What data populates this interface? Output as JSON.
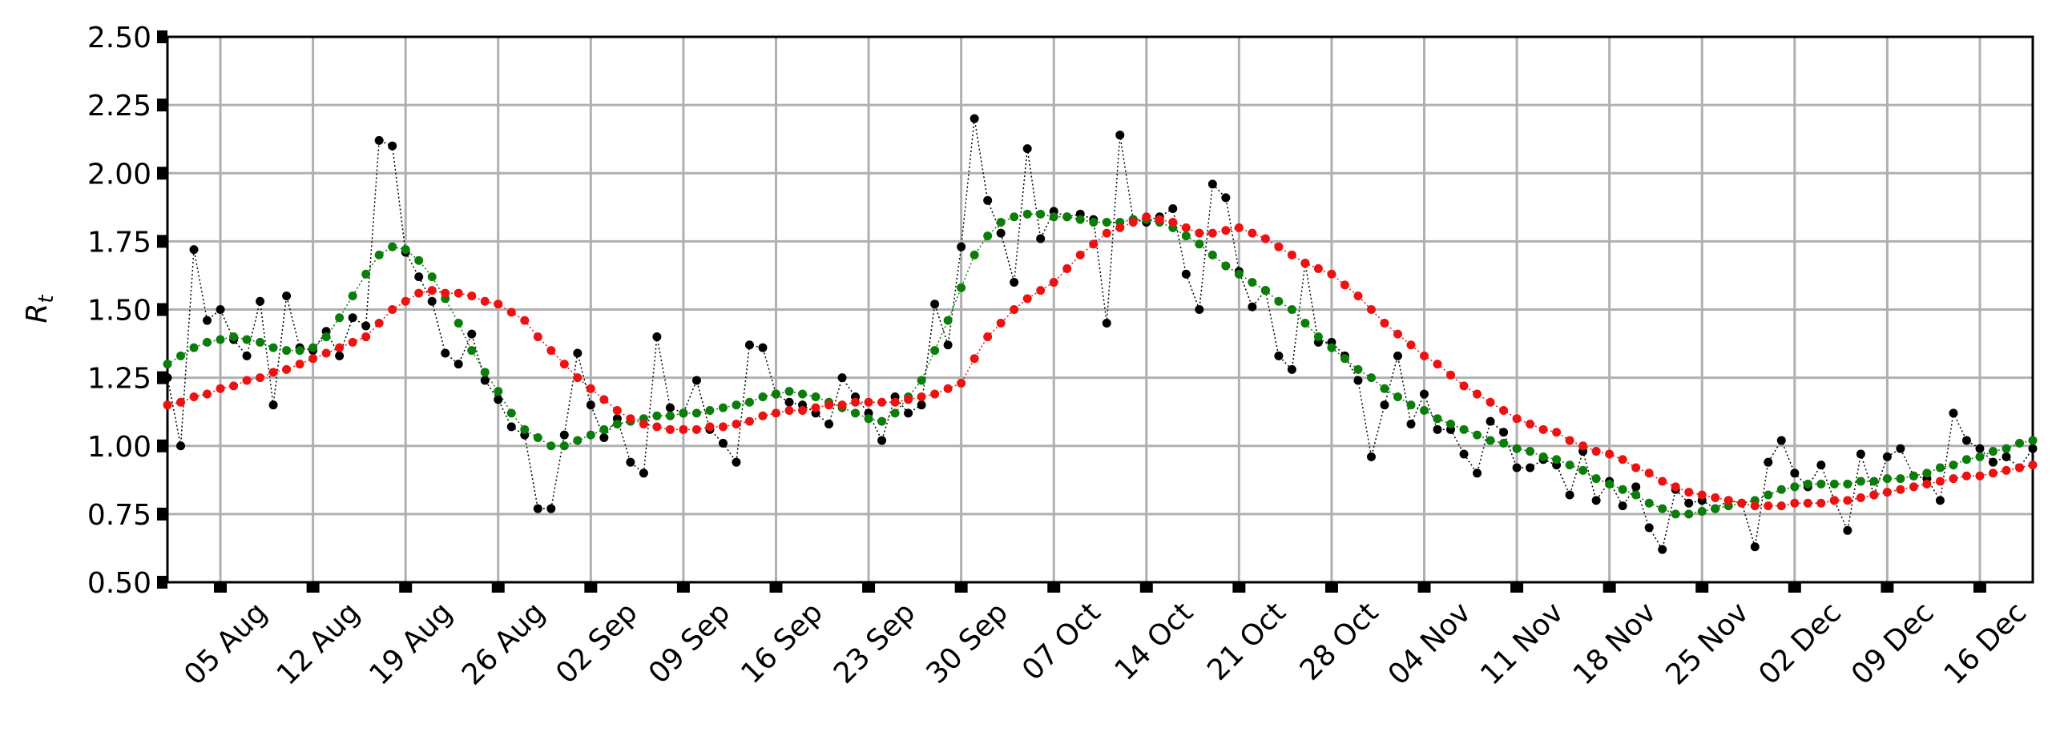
{
  "chart_data": {
    "type": "line",
    "ylabel": "R",
    "ylabel_subscript": "t",
    "categories": [
      null,
      null,
      null,
      null,
      "05 Aug",
      null,
      null,
      null,
      null,
      null,
      null,
      "12 Aug",
      null,
      null,
      null,
      null,
      null,
      null,
      "19 Aug",
      null,
      null,
      null,
      null,
      null,
      null,
      "26 Aug",
      null,
      null,
      null,
      null,
      null,
      null,
      "02 Sep",
      null,
      null,
      null,
      null,
      null,
      null,
      "09 Sep",
      null,
      null,
      null,
      null,
      null,
      null,
      "16 Sep",
      null,
      null,
      null,
      null,
      null,
      null,
      "23 Sep",
      null,
      null,
      null,
      null,
      null,
      null,
      "30 Sep",
      null,
      null,
      null,
      null,
      null,
      null,
      "07 Oct",
      null,
      null,
      null,
      null,
      null,
      null,
      "14 Oct",
      null,
      null,
      null,
      null,
      null,
      null,
      "21 Oct",
      null,
      null,
      null,
      null,
      null,
      null,
      "28 Oct",
      null,
      null,
      null,
      null,
      null,
      null,
      "04 Nov",
      null,
      null,
      null,
      null,
      null,
      null,
      "11 Nov",
      null,
      null,
      null,
      null,
      null,
      null,
      "18 Nov",
      null,
      null,
      null,
      null,
      null,
      null,
      "25 Nov",
      null,
      null,
      null,
      null,
      null,
      null,
      "02 Dec",
      null,
      null,
      null,
      null,
      null,
      null,
      "09 Dec",
      null,
      null,
      null,
      null,
      null,
      null,
      "16 Dec",
      null,
      null,
      null,
      null
    ],
    "ylim": [
      0.5,
      2.5
    ],
    "yticks": [
      {
        "value": 0.5,
        "label": "0.50"
      },
      {
        "value": 0.75,
        "label": "0.75"
      },
      {
        "value": 1.0,
        "label": "1.00"
      },
      {
        "value": 1.25,
        "label": "1.25"
      },
      {
        "value": 1.5,
        "label": "1.50"
      },
      {
        "value": 1.75,
        "label": "1.75"
      },
      {
        "value": 2.0,
        "label": "2.00"
      },
      {
        "value": 2.25,
        "label": "2.25"
      },
      {
        "value": 2.5,
        "label": "2.50"
      }
    ],
    "grid": true,
    "series": [
      {
        "color": "#000000",
        "linestyle": "dotted",
        "values": [
          1.25,
          1.0,
          1.72,
          1.46,
          1.5,
          1.39,
          1.33,
          1.53,
          1.15,
          1.55,
          1.36,
          1.35,
          1.42,
          1.33,
          1.47,
          1.44,
          2.12,
          2.1,
          1.71,
          1.62,
          1.53,
          1.34,
          1.3,
          1.41,
          1.24,
          1.17,
          1.07,
          1.04,
          0.77,
          0.77,
          1.04,
          1.34,
          1.15,
          1.03,
          1.1,
          0.94,
          0.9,
          1.4,
          1.14,
          1.12,
          1.24,
          1.06,
          1.01,
          0.94,
          1.37,
          1.36,
          1.19,
          1.16,
          1.15,
          1.12,
          1.08,
          1.25,
          1.18,
          1.12,
          1.02,
          1.18,
          1.12,
          1.15,
          1.52,
          1.37,
          1.73,
          2.2,
          1.9,
          1.78,
          1.6,
          2.09,
          1.76,
          1.86,
          1.84,
          1.85,
          1.83,
          1.45,
          2.14,
          1.83,
          1.82,
          1.84,
          1.87,
          1.63,
          1.5,
          1.96,
          1.91,
          1.64,
          1.51,
          1.57,
          1.33,
          1.28,
          1.67,
          1.38,
          1.38,
          1.33,
          1.24,
          0.96,
          1.15,
          1.33,
          1.08,
          1.19,
          1.06,
          1.06,
          0.97,
          0.9,
          1.09,
          1.05,
          0.92,
          0.92,
          0.95,
          0.93,
          0.82,
          0.98,
          0.8,
          0.87,
          0.78,
          0.85,
          0.7,
          0.62,
          0.84,
          0.79,
          0.8,
          0.77,
          0.8,
          0.79,
          0.63,
          0.94,
          1.02,
          0.9,
          0.85,
          0.93,
          0.8,
          0.69,
          0.97,
          0.82,
          0.96,
          0.99,
          0.89,
          0.88,
          0.8,
          1.12,
          1.02,
          0.99,
          0.94,
          0.96,
          0.92,
          0.99
        ]
      },
      {
        "color": "#0a7d0a",
        "linestyle": "dotted",
        "values": [
          1.3,
          1.33,
          1.36,
          1.38,
          1.39,
          1.4,
          1.39,
          1.38,
          1.36,
          1.35,
          1.35,
          1.36,
          1.4,
          1.47,
          1.55,
          1.63,
          1.7,
          1.73,
          1.72,
          1.68,
          1.62,
          1.54,
          1.45,
          1.35,
          1.27,
          1.2,
          1.12,
          1.06,
          1.03,
          1.0,
          1.0,
          1.02,
          1.04,
          1.06,
          1.08,
          1.09,
          1.1,
          1.11,
          1.11,
          1.12,
          1.12,
          1.13,
          1.14,
          1.15,
          1.16,
          1.18,
          1.19,
          1.2,
          1.19,
          1.18,
          1.16,
          1.14,
          1.12,
          1.1,
          1.09,
          1.12,
          1.18,
          1.24,
          1.35,
          1.46,
          1.58,
          1.7,
          1.77,
          1.82,
          1.84,
          1.85,
          1.85,
          1.84,
          1.84,
          1.83,
          1.82,
          1.82,
          1.82,
          1.83,
          1.83,
          1.82,
          1.8,
          1.77,
          1.74,
          1.7,
          1.66,
          1.63,
          1.6,
          1.57,
          1.53,
          1.5,
          1.45,
          1.4,
          1.36,
          1.32,
          1.28,
          1.25,
          1.21,
          1.18,
          1.15,
          1.13,
          1.1,
          1.08,
          1.06,
          1.04,
          1.02,
          1.01,
          0.99,
          0.98,
          0.96,
          0.95,
          0.93,
          0.91,
          0.88,
          0.86,
          0.84,
          0.82,
          0.79,
          0.77,
          0.75,
          0.75,
          0.76,
          0.77,
          0.78,
          0.79,
          0.8,
          0.82,
          0.84,
          0.85,
          0.86,
          0.86,
          0.86,
          0.86,
          0.87,
          0.87,
          0.88,
          0.88,
          0.89,
          0.9,
          0.92,
          0.93,
          0.95,
          0.96,
          0.98,
          0.99,
          1.01,
          1.02
        ]
      },
      {
        "color": "#ee1111",
        "linestyle": "dotted",
        "values": [
          1.15,
          1.16,
          1.18,
          1.19,
          1.21,
          1.22,
          1.24,
          1.25,
          1.27,
          1.28,
          1.3,
          1.32,
          1.34,
          1.36,
          1.38,
          1.4,
          1.45,
          1.5,
          1.53,
          1.56,
          1.57,
          1.56,
          1.56,
          1.55,
          1.53,
          1.52,
          1.49,
          1.46,
          1.4,
          1.35,
          1.3,
          1.25,
          1.21,
          1.17,
          1.13,
          1.1,
          1.08,
          1.07,
          1.06,
          1.06,
          1.06,
          1.07,
          1.07,
          1.08,
          1.09,
          1.11,
          1.12,
          1.13,
          1.13,
          1.14,
          1.15,
          1.15,
          1.16,
          1.16,
          1.16,
          1.16,
          1.17,
          1.18,
          1.19,
          1.21,
          1.23,
          1.32,
          1.4,
          1.45,
          1.5,
          1.54,
          1.57,
          1.6,
          1.65,
          1.7,
          1.74,
          1.78,
          1.8,
          1.82,
          1.84,
          1.83,
          1.82,
          1.8,
          1.78,
          1.78,
          1.79,
          1.8,
          1.78,
          1.76,
          1.73,
          1.7,
          1.67,
          1.65,
          1.63,
          1.59,
          1.55,
          1.5,
          1.45,
          1.41,
          1.37,
          1.33,
          1.3,
          1.26,
          1.22,
          1.19,
          1.16,
          1.13,
          1.1,
          1.08,
          1.06,
          1.05,
          1.02,
          1.0,
          0.98,
          0.97,
          0.95,
          0.92,
          0.9,
          0.87,
          0.85,
          0.83,
          0.82,
          0.81,
          0.8,
          0.79,
          0.78,
          0.78,
          0.78,
          0.79,
          0.79,
          0.79,
          0.8,
          0.8,
          0.81,
          0.82,
          0.83,
          0.84,
          0.85,
          0.86,
          0.87,
          0.88,
          0.89,
          0.89,
          0.9,
          0.91,
          0.92,
          0.93
        ]
      }
    ]
  }
}
